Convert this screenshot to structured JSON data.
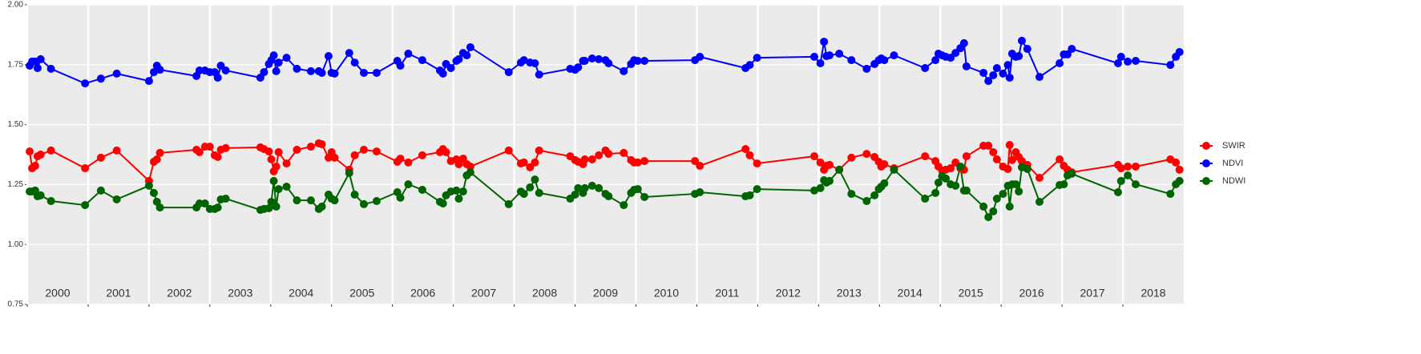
{
  "chart_data": {
    "type": "line",
    "x": [
      2000.04,
      2000.08,
      2000.13,
      2000.17,
      2000.22,
      2000.39,
      2000.95,
      2001.21,
      2001.47,
      2002,
      2002.08,
      2002.13,
      2002.18,
      2002.78,
      2002.83,
      2002.92,
      2003,
      2003.08,
      2003.13,
      2003.18,
      2003.26,
      2003.83,
      2003.89,
      2003.97,
      2004.01,
      2004.05,
      2004.09,
      2004.13,
      2004.26,
      2004.43,
      2004.66,
      2004.79,
      2004.84,
      2004.95,
      2005,
      2005.05,
      2005.29,
      2005.38,
      2005.53,
      2005.74,
      2006.08,
      2006.13,
      2006.26,
      2006.49,
      2006.78,
      2006.83,
      2006.88,
      2006.96,
      2007.05,
      2007.09,
      2007.16,
      2007.22,
      2007.28,
      2007.91,
      2008.11,
      2008.16,
      2008.26,
      2008.34,
      2008.41,
      2008.92,
      2009,
      2009.05,
      2009.13,
      2009.16,
      2009.28,
      2009.39,
      2009.5,
      2009.55,
      2009.8,
      2009.92,
      2009.97,
      2010.03,
      2010.14,
      2010.97,
      2011.05,
      2011.8,
      2011.87,
      2011.99,
      2012.93,
      2013.03,
      2013.09,
      2013.13,
      2013.18,
      2013.34,
      2013.54,
      2013.79,
      2013.92,
      2013.99,
      2014.03,
      2014.08,
      2014.24,
      2014.75,
      2014.92,
      2014.97,
      2015.03,
      2015.09,
      2015.17,
      2015.25,
      2015.33,
      2015.39,
      2015.43,
      2015.71,
      2015.79,
      2015.87,
      2015.93,
      2016.03,
      2016.11,
      2016.14,
      2016.18,
      2016.24,
      2016.29,
      2016.34,
      2016.43,
      2016.63,
      2016.96,
      2017.03,
      2017.09,
      2017.16,
      2017.92,
      2017.97,
      2018.08,
      2018.21,
      2018.78,
      2018.87,
      2018.93
    ],
    "series": [
      {
        "name": "SWIR",
        "color": "#ff0000",
        "values": [
          1.388,
          1.318,
          1.328,
          1.368,
          1.375,
          1.392,
          1.318,
          1.362,
          1.392,
          1.265,
          1.345,
          1.355,
          1.382,
          1.395,
          1.385,
          1.408,
          1.408,
          1.372,
          1.365,
          1.395,
          1.402,
          1.405,
          1.398,
          1.388,
          1.355,
          1.305,
          1.325,
          1.385,
          1.338,
          1.395,
          1.408,
          1.422,
          1.418,
          1.362,
          1.385,
          1.362,
          1.312,
          1.372,
          1.395,
          1.388,
          1.345,
          1.358,
          1.342,
          1.372,
          1.385,
          1.398,
          1.385,
          1.348,
          1.355,
          1.335,
          1.358,
          1.335,
          1.325,
          1.392,
          1.338,
          1.342,
          1.322,
          1.342,
          1.392,
          1.368,
          1.352,
          1.345,
          1.335,
          1.355,
          1.355,
          1.372,
          1.392,
          1.378,
          1.382,
          1.352,
          1.342,
          1.342,
          1.348,
          1.348,
          1.328,
          1.398,
          1.372,
          1.338,
          1.368,
          1.342,
          1.312,
          1.328,
          1.332,
          1.312,
          1.362,
          1.378,
          1.365,
          1.345,
          1.325,
          1.335,
          1.318,
          1.368,
          1.348,
          1.325,
          1.308,
          1.312,
          1.318,
          1.342,
          1.318,
          1.312,
          1.368,
          1.412,
          1.412,
          1.385,
          1.355,
          1.325,
          1.315,
          1.415,
          1.352,
          1.385,
          1.365,
          1.348,
          1.332,
          1.278,
          1.355,
          1.328,
          1.312,
          1.301,
          1.332,
          1.318,
          1.325,
          1.325,
          1.355,
          1.342,
          1.312
        ]
      },
      {
        "name": "NDVI",
        "color": "#0000ff",
        "values": [
          1.746,
          1.763,
          1.763,
          1.736,
          1.773,
          1.733,
          1.672,
          1.692,
          1.713,
          1.682,
          1.719,
          1.746,
          1.729,
          1.703,
          1.726,
          1.726,
          1.719,
          1.719,
          1.696,
          1.746,
          1.726,
          1.696,
          1.719,
          1.753,
          1.769,
          1.789,
          1.723,
          1.759,
          1.779,
          1.733,
          1.723,
          1.723,
          1.716,
          1.786,
          1.716,
          1.713,
          1.799,
          1.759,
          1.716,
          1.716,
          1.766,
          1.746,
          1.796,
          1.769,
          1.726,
          1.713,
          1.753,
          1.736,
          1.766,
          1.773,
          1.799,
          1.789,
          1.823,
          1.719,
          1.759,
          1.769,
          1.759,
          1.756,
          1.709,
          1.733,
          1.729,
          1.739,
          1.766,
          1.766,
          1.776,
          1.773,
          1.769,
          1.756,
          1.723,
          1.753,
          1.769,
          1.766,
          1.766,
          1.769,
          1.783,
          1.736,
          1.749,
          1.779,
          1.783,
          1.756,
          1.846,
          1.786,
          1.789,
          1.796,
          1.769,
          1.733,
          1.753,
          1.769,
          1.776,
          1.769,
          1.789,
          1.736,
          1.769,
          1.796,
          1.789,
          1.783,
          1.779,
          1.799,
          1.819,
          1.84,
          1.743,
          1.716,
          1.682,
          1.706,
          1.736,
          1.713,
          1.749,
          1.696,
          1.796,
          1.783,
          1.786,
          1.85,
          1.816,
          1.699,
          1.756,
          1.793,
          1.793,
          1.816,
          1.756,
          1.783,
          1.763,
          1.766,
          1.749,
          1.783,
          1.803
        ]
      },
      {
        "name": "NDWI",
        "color": "#006400",
        "values": [
          1.221,
          1.221,
          1.225,
          1.201,
          1.205,
          1.181,
          1.164,
          1.225,
          1.188,
          1.245,
          1.215,
          1.178,
          1.154,
          1.154,
          1.171,
          1.171,
          1.148,
          1.148,
          1.154,
          1.188,
          1.191,
          1.144,
          1.148,
          1.151,
          1.178,
          1.265,
          1.158,
          1.231,
          1.241,
          1.184,
          1.184,
          1.148,
          1.158,
          1.208,
          1.191,
          1.184,
          1.298,
          1.208,
          1.168,
          1.181,
          1.218,
          1.195,
          1.251,
          1.228,
          1.178,
          1.171,
          1.205,
          1.221,
          1.225,
          1.191,
          1.221,
          1.288,
          1.301,
          1.168,
          1.221,
          1.211,
          1.238,
          1.271,
          1.215,
          1.191,
          1.208,
          1.235,
          1.215,
          1.235,
          1.245,
          1.235,
          1.211,
          1.201,
          1.164,
          1.215,
          1.228,
          1.231,
          1.198,
          1.211,
          1.218,
          1.201,
          1.205,
          1.231,
          1.225,
          1.235,
          1.268,
          1.258,
          1.265,
          1.312,
          1.211,
          1.181,
          1.205,
          1.231,
          1.241,
          1.255,
          1.312,
          1.191,
          1.215,
          1.258,
          1.285,
          1.275,
          1.251,
          1.245,
          1.325,
          1.225,
          1.225,
          1.158,
          1.114,
          1.138,
          1.191,
          1.211,
          1.245,
          1.158,
          1.251,
          1.251,
          1.221,
          1.322,
          1.315,
          1.178,
          1.248,
          1.251,
          1.288,
          1.295,
          1.218,
          1.265,
          1.288,
          1.251,
          1.211,
          1.251,
          1.265
        ]
      }
    ],
    "years": [
      2000,
      2001,
      2002,
      2003,
      2004,
      2005,
      2006,
      2007,
      2008,
      2009,
      2010,
      2011,
      2012,
      2013,
      2014,
      2015,
      2016,
      2017,
      2018
    ],
    "xlim": [
      2000,
      2019
    ],
    "ylim": [
      0.75,
      2
    ],
    "yticks": [
      0.75,
      {
        "value": 1,
        "label": "1.00"
      },
      1.25,
      {
        "value": 1.5,
        "label": "1.50"
      },
      1.75,
      {
        "value": 2,
        "label": "2.00"
      }
    ],
    "grid": true,
    "legend": "right"
  }
}
